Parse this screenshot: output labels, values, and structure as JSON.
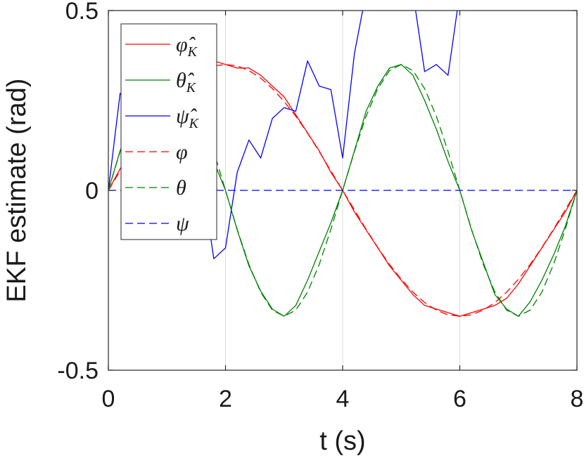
{
  "chart_data": {
    "type": "line",
    "xlabel": "t (s)",
    "ylabel": "EKF estimate (rad)",
    "xlim": [
      0,
      8
    ],
    "ylim": [
      -0.5,
      0.5
    ],
    "xticks": [
      "0",
      "2",
      "4",
      "6",
      "8"
    ],
    "yticks": [
      "-0.5",
      "0",
      "0.5"
    ],
    "grid": "vertical",
    "legend_position": "top-left",
    "colors": {
      "red": "#ff0000",
      "green": "#008000",
      "blue": "#0000ff",
      "axis": "#262626",
      "grid": "#dcdcdc"
    },
    "x": [
      0,
      0.2,
      0.4,
      0.6,
      0.8,
      1.0,
      1.2,
      1.4,
      1.6,
      1.8,
      2.0,
      2.2,
      2.4,
      2.6,
      2.8,
      3.0,
      3.2,
      3.4,
      3.6,
      3.8,
      4.0,
      4.2,
      4.4,
      4.6,
      4.8,
      5.0,
      5.2,
      5.4,
      5.6,
      5.8,
      6.0,
      6.2,
      6.4,
      6.6,
      6.8,
      7.0,
      7.2,
      7.4,
      7.6,
      7.8,
      8.0
    ],
    "series": [
      {
        "name": "φ̂_K",
        "color": "#ff0000",
        "dash": "solid",
        "values": [
          0,
          0.06,
          0.11,
          0.16,
          0.21,
          0.25,
          0.29,
          0.32,
          0.34,
          0.36,
          0.35,
          0.34,
          0.34,
          0.32,
          0.29,
          0.26,
          0.21,
          0.16,
          0.11,
          0.05,
          0.0,
          -0.06,
          -0.11,
          -0.16,
          -0.21,
          -0.25,
          -0.29,
          -0.32,
          -0.33,
          -0.34,
          -0.35,
          -0.34,
          -0.33,
          -0.32,
          -0.3,
          -0.26,
          -0.21,
          -0.16,
          -0.11,
          -0.06,
          0
        ]
      },
      {
        "name": "θ̂_K",
        "color": "#008000",
        "dash": "solid",
        "values": [
          0,
          0.11,
          0.2,
          0.3,
          0.34,
          0.35,
          0.3,
          0.21,
          0.12,
          0.08,
          0.0,
          -0.11,
          -0.21,
          -0.28,
          -0.33,
          -0.35,
          -0.32,
          -0.25,
          -0.17,
          -0.09,
          0.0,
          0.11,
          0.22,
          0.29,
          0.34,
          0.35,
          0.32,
          0.25,
          0.17,
          0.08,
          0.0,
          -0.11,
          -0.2,
          -0.29,
          -0.33,
          -0.35,
          -0.31,
          -0.25,
          -0.18,
          -0.1,
          0
        ]
      },
      {
        "name": "ψ̂_K",
        "color": "#0000ff",
        "dash": "solid",
        "values": [
          0,
          0.27,
          0.23,
          0.25,
          0.24,
          0.2,
          0.18,
          0.1,
          0.03,
          -0.19,
          -0.16,
          0.05,
          0.14,
          0.09,
          0.2,
          0.23,
          0.22,
          0.36,
          0.29,
          0.28,
          0.09,
          0.38,
          0.55,
          0.55,
          0.55,
          0.55,
          0.55,
          0.33,
          0.35,
          0.32,
          0.55,
          0.55,
          0.55,
          0.55,
          0.55,
          0.55,
          0.55,
          0.55,
          0.55,
          0.55,
          0.55
        ]
      },
      {
        "name": "φ",
        "color": "#ff0000",
        "dash": "dashed",
        "values": [
          0,
          0.054,
          0.108,
          0.159,
          0.206,
          0.247,
          0.283,
          0.312,
          0.333,
          0.346,
          0.35,
          0.346,
          0.333,
          0.312,
          0.283,
          0.247,
          0.206,
          0.159,
          0.108,
          0.054,
          0,
          -0.054,
          -0.108,
          -0.159,
          -0.206,
          -0.247,
          -0.283,
          -0.312,
          -0.333,
          -0.346,
          -0.35,
          -0.346,
          -0.333,
          -0.312,
          -0.283,
          -0.247,
          -0.206,
          -0.159,
          -0.108,
          -0.054,
          0
        ]
      },
      {
        "name": "θ",
        "color": "#008000",
        "dash": "dashed",
        "values": [
          0,
          0.108,
          0.206,
          0.283,
          0.333,
          0.35,
          0.333,
          0.283,
          0.206,
          0.108,
          0,
          -0.108,
          -0.206,
          -0.283,
          -0.333,
          -0.35,
          -0.333,
          -0.283,
          -0.206,
          -0.108,
          0,
          0.108,
          0.206,
          0.283,
          0.333,
          0.35,
          0.333,
          0.283,
          0.206,
          0.108,
          0,
          -0.108,
          -0.206,
          -0.283,
          -0.333,
          -0.35,
          -0.333,
          -0.283,
          -0.206,
          -0.108,
          0
        ]
      },
      {
        "name": "ψ",
        "color": "#0000ff",
        "dash": "dashed",
        "values": [
          0,
          0,
          0,
          0,
          0,
          0,
          0,
          0,
          0,
          0,
          0,
          0,
          0,
          0,
          0,
          0,
          0,
          0,
          0,
          0,
          0,
          0,
          0,
          0,
          0,
          0,
          0,
          0,
          0,
          0,
          0,
          0,
          0,
          0,
          0,
          0,
          0,
          0,
          0,
          0,
          0
        ]
      }
    ],
    "legend_labels": [
      {
        "base": "φ̂",
        "sub": "K"
      },
      {
        "base": "θ̂",
        "sub": "K"
      },
      {
        "base": "ψ̂",
        "sub": "K"
      },
      {
        "base": "φ",
        "sub": ""
      },
      {
        "base": "θ",
        "sub": ""
      },
      {
        "base": "ψ",
        "sub": ""
      }
    ]
  }
}
